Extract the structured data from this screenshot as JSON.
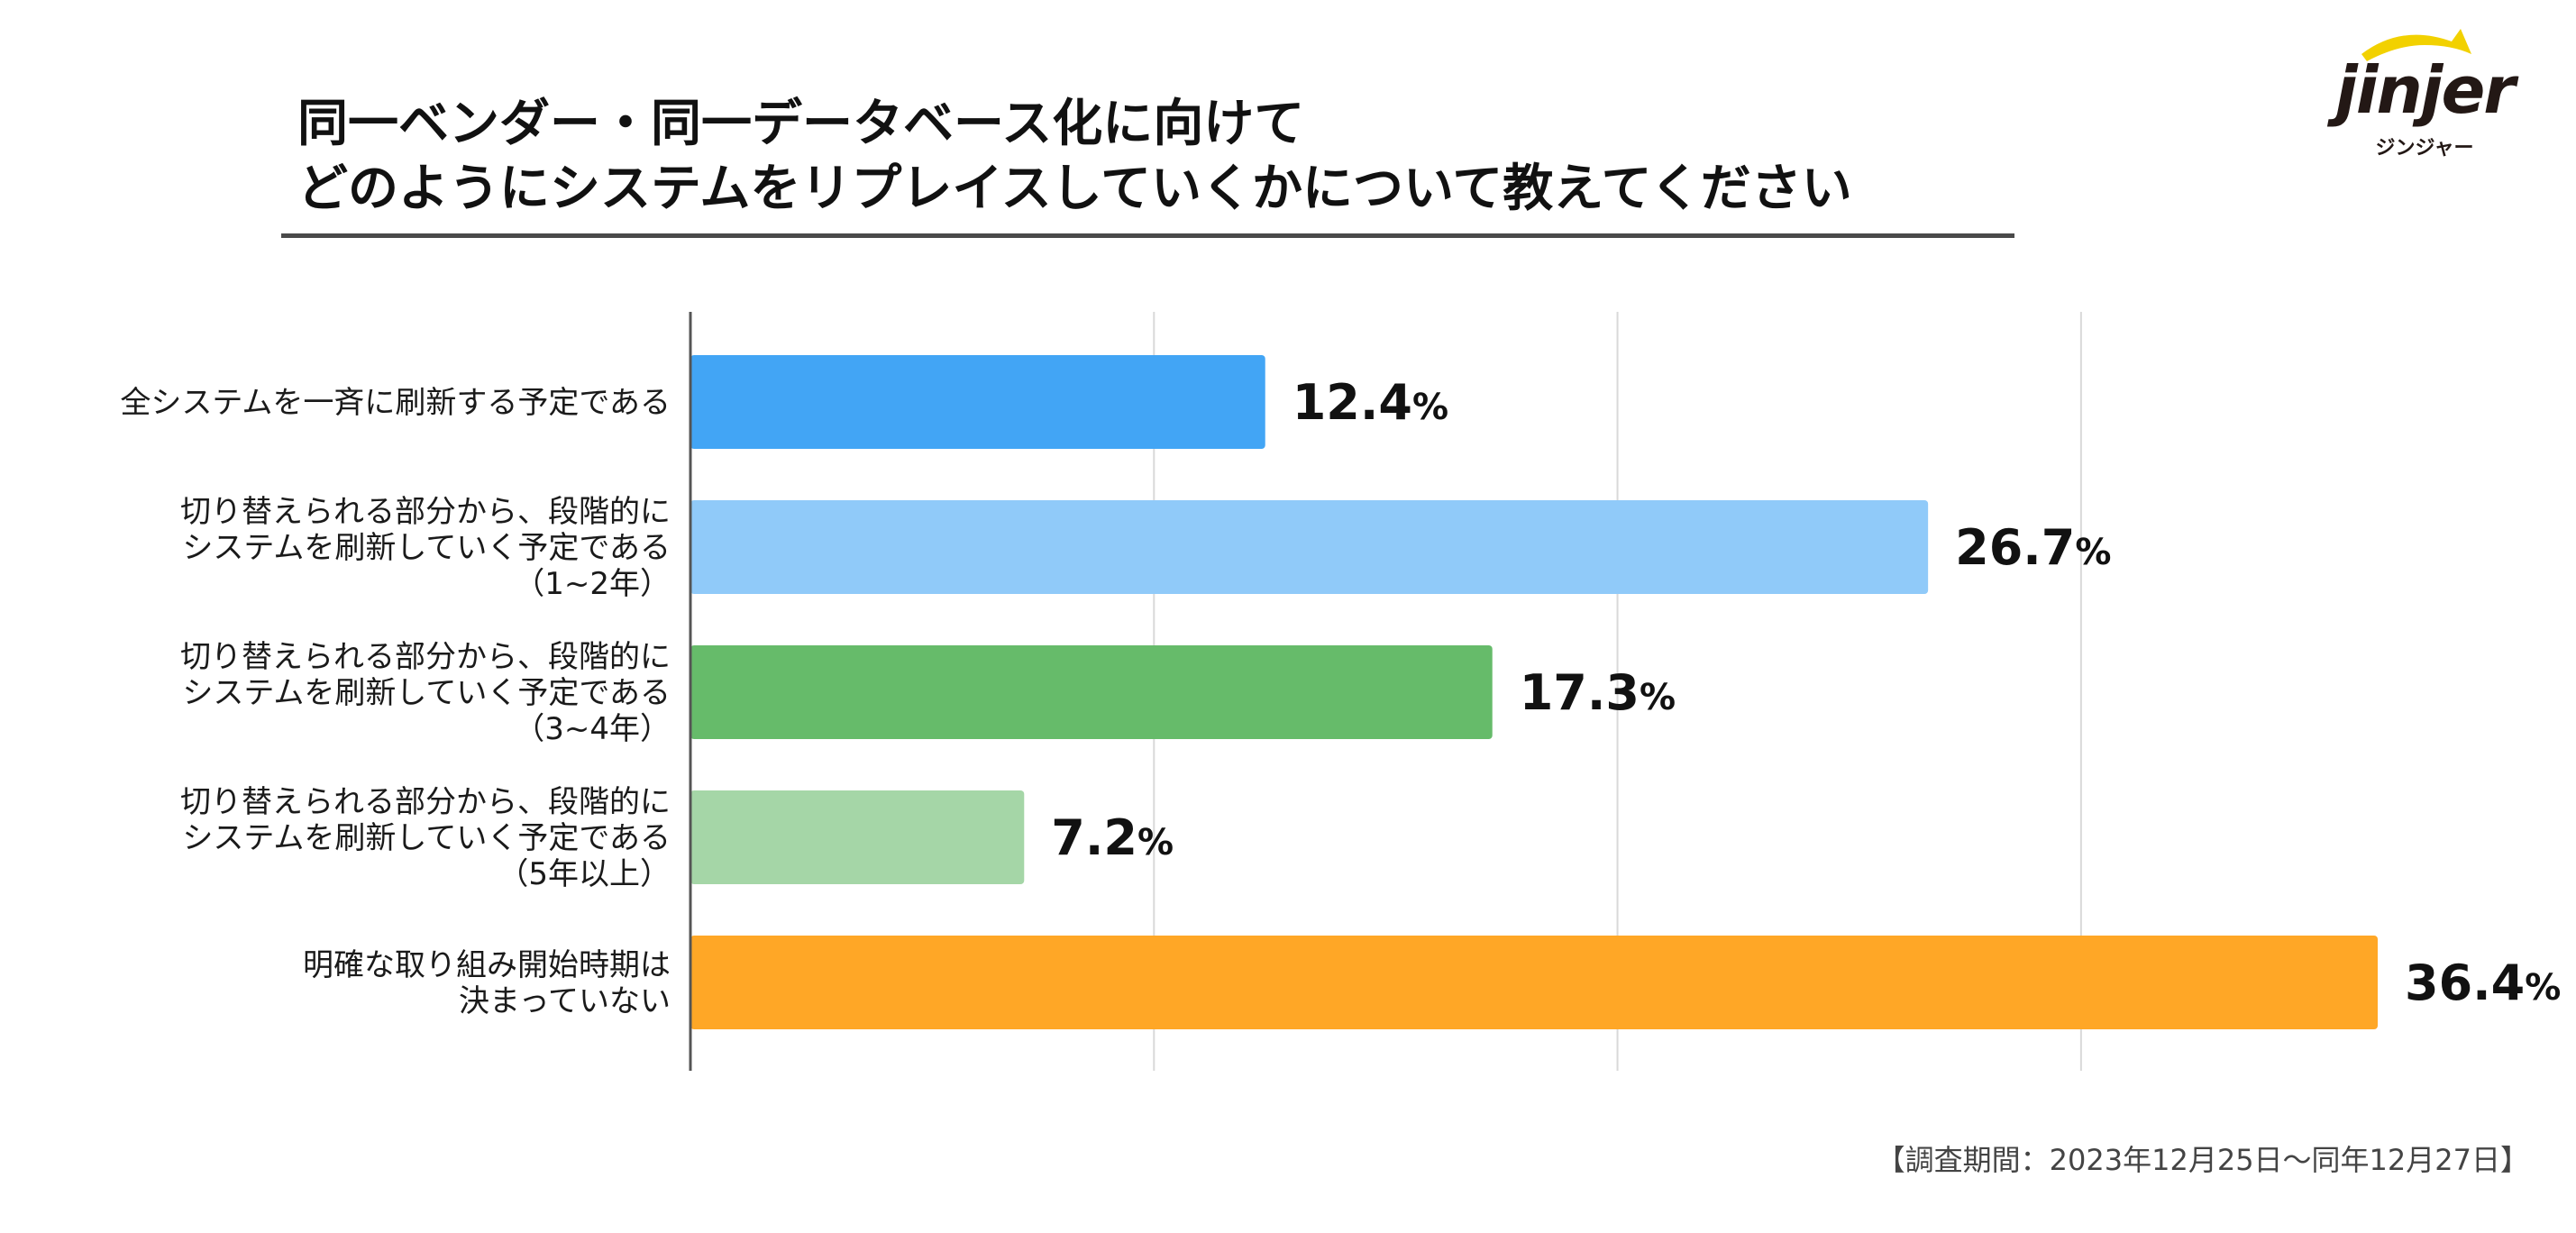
{
  "title": {
    "line1": "同一ベンダー・同一データベース化に向けて",
    "line2": "どのようにシステムをリプレイスしていくかについて教えてください"
  },
  "logo": {
    "wordmark": "jinjer",
    "kana": "ジンジャー",
    "accent_color": "#F2D100"
  },
  "footnote": "【調査期間：2023年12月25日〜同年12月27日】",
  "chart_data": {
    "type": "bar",
    "orientation": "horizontal",
    "title": "",
    "xlabel": "",
    "ylabel": "",
    "xlim": [
      0,
      36.4
    ],
    "grid": true,
    "value_suffix": "%",
    "categories": [
      [
        "全システムを一斉に刷新する予定である"
      ],
      [
        "切り替えられる部分から、段階的に",
        "システムを刷新していく予定である",
        "（1~2年）"
      ],
      [
        "切り替えられる部分から、段階的に",
        "システムを刷新していく予定である",
        "（3~4年）"
      ],
      [
        "切り替えられる部分から、段階的に",
        "システムを刷新していく予定である",
        "（5年以上）"
      ],
      [
        "明確な取り組み開始時期は",
        "決まっていない"
      ]
    ],
    "values": [
      12.4,
      26.7,
      17.3,
      7.2,
      36.4
    ],
    "labels": [
      "12.4",
      "26.7",
      "17.3",
      "7.2",
      "36.4"
    ],
    "colors": [
      "#42A5F5",
      "#90CAF9",
      "#66BB6A",
      "#A5D6A7",
      "#FFA726"
    ]
  }
}
